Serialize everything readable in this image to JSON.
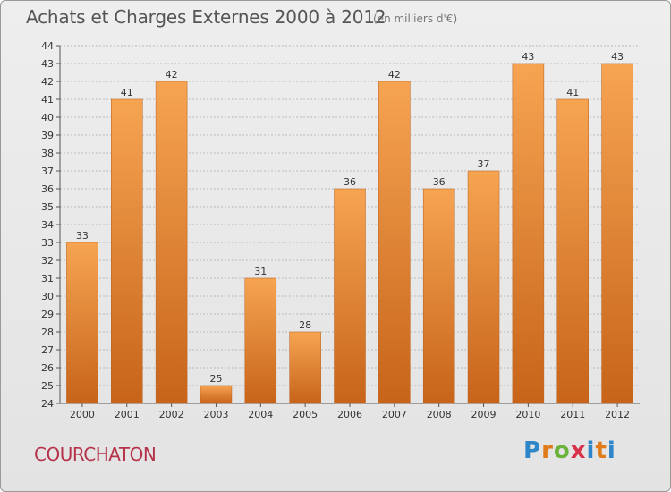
{
  "title": "Achats et Charges Externes 2000 à 2012",
  "subtitle": "(en milliers d'€)",
  "commune": "COURCHATON",
  "logo": {
    "letters": [
      "P",
      "r",
      "o",
      "x",
      "i",
      "t",
      "i"
    ],
    "colors": [
      "#2e86c9",
      "#e07b1a",
      "#6bb33a",
      "#d8324a",
      "#2e86c9",
      "#e07b1a",
      "#2e86c9"
    ]
  },
  "colors": {
    "bar_top": "#f6a452",
    "bar_bottom": "#c7641a",
    "grid": "#bbbbbb"
  },
  "chart_data": {
    "type": "bar",
    "categories": [
      "2000",
      "2001",
      "2002",
      "2003",
      "2004",
      "2005",
      "2006",
      "2007",
      "2008",
      "2009",
      "2010",
      "2011",
      "2012"
    ],
    "values": [
      33,
      41,
      42,
      25,
      31,
      28,
      36,
      42,
      36,
      37,
      43,
      41,
      43
    ],
    "ylim": [
      24,
      44
    ],
    "yticks": [
      24,
      25,
      26,
      27,
      28,
      29,
      30,
      31,
      32,
      33,
      34,
      35,
      36,
      37,
      38,
      39,
      40,
      41,
      42,
      43,
      44
    ],
    "grid": true,
    "data_labels": true
  }
}
